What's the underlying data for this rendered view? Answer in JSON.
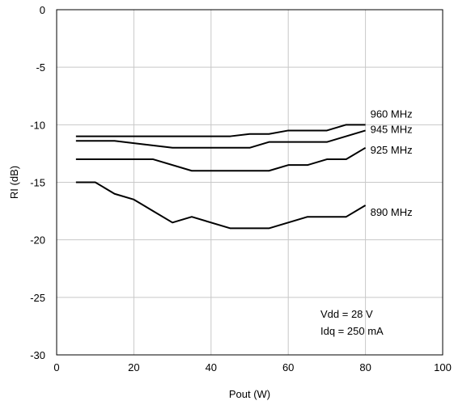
{
  "chart_data": {
    "type": "line",
    "xlabel": "Pout (W)",
    "ylabel": "RI (dB)",
    "xlim": [
      0,
      100
    ],
    "ylim": [
      -30,
      0
    ],
    "xticks": [
      0,
      20,
      40,
      60,
      80,
      100
    ],
    "yticks": [
      0,
      -5,
      -10,
      -15,
      -20,
      -25,
      -30
    ],
    "grid": true,
    "series": [
      {
        "name": "960 MHz",
        "x": [
          5,
          45,
          50,
          55,
          60,
          70,
          75,
          80
        ],
        "y": [
          -11,
          -11,
          -10.8,
          -10.8,
          -10.5,
          -10.5,
          -10,
          -10
        ]
      },
      {
        "name": "945 MHz",
        "x": [
          5,
          15,
          20,
          30,
          50,
          55,
          70,
          80
        ],
        "y": [
          -11.4,
          -11.4,
          -11.6,
          -12,
          -12,
          -11.5,
          -11.5,
          -10.5
        ]
      },
      {
        "name": "925 MHz",
        "x": [
          5,
          25,
          35,
          55,
          60,
          65,
          70,
          75,
          80
        ],
        "y": [
          -13,
          -13,
          -14,
          -14,
          -13.5,
          -13.5,
          -13,
          -13,
          -12
        ]
      },
      {
        "name": "890 MHz",
        "x": [
          5,
          10,
          15,
          20,
          25,
          30,
          35,
          45,
          55,
          65,
          75,
          80
        ],
        "y": [
          -15,
          -15,
          -16,
          -16.5,
          -17.5,
          -18.5,
          -18,
          -19,
          -19,
          -18,
          -18,
          -17
        ]
      }
    ],
    "annotations": [
      "Vdd = 28 V",
      "Idq = 250 mA"
    ]
  }
}
